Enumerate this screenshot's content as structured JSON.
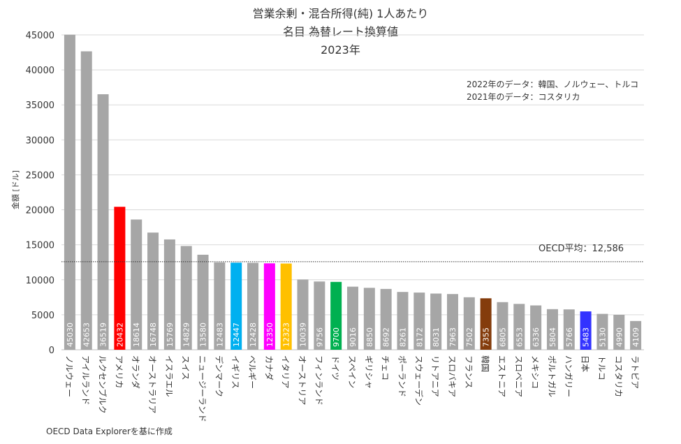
{
  "title_lines": [
    "営業余剰・混合所得(純) 1人あたり",
    "名目 為替レート換算値",
    "2023年"
  ],
  "notes": [
    "2022年のデータ：韓国、ノルウェー、トルコ",
    "2021年のデータ：コスタリカ"
  ],
  "footer": "OECD Data Explorerを基に作成",
  "y_axis_label": "金額 [ドル]",
  "average_label": "OECD平均：12,586",
  "chart_data": {
    "type": "bar",
    "title": "営業余剰・混合所得(純) 1人あたり 名目 為替レート換算値 2023年",
    "ylabel": "金額 [ドル]",
    "ylim": [
      0,
      45000
    ],
    "yticks": [
      0,
      5000,
      10000,
      15000,
      20000,
      25000,
      30000,
      35000,
      40000,
      45000
    ],
    "ytick_labels": [
      "0",
      "5000",
      "10000",
      "15000",
      "20000",
      "25000",
      "30000",
      "35000",
      "40000",
      "45000"
    ],
    "grid": true,
    "average": 12586,
    "categories": [
      "ノルウェー",
      "アイルランド",
      "ルクセンブルク",
      "アメリカ",
      "オランダ",
      "オーストラリア",
      "イスラエル",
      "スイス",
      "ニュージーランド",
      "デンマーク",
      "イギリス",
      "ベルギー",
      "カナダ",
      "イタリア",
      "オーストリア",
      "フィンランド",
      "ドイツ",
      "スペイン",
      "ギリシャ",
      "チェコ",
      "ポーランド",
      "スウェーデン",
      "リトアニア",
      "スロバキア",
      "フランス",
      "韓国",
      "エストニア",
      "スロベニア",
      "メキシコ",
      "ポルトガル",
      "ハンガリー",
      "日本",
      "トルコ",
      "コスタリカ",
      "ラトビア"
    ],
    "values": [
      45030,
      42653,
      36519,
      20432,
      18614,
      16748,
      15769,
      14829,
      13580,
      12483,
      12447,
      12428,
      12350,
      12323,
      10039,
      9756,
      9700,
      9016,
      8850,
      8692,
      8261,
      8172,
      8031,
      7963,
      7502,
      7355,
      6805,
      6553,
      6336,
      5804,
      5766,
      5483,
      5130,
      4990,
      4109
    ],
    "value_labels": [
      "45030",
      "42653",
      "36519",
      "20432",
      "18614",
      "16748",
      "15769",
      "14829",
      "13580",
      "12483",
      "12447",
      "12428",
      "12350",
      "12323",
      "10039",
      "9756",
      "9700",
      "9016",
      "8850",
      "8692",
      "8261",
      "8172",
      "8031",
      "7963",
      "7502",
      "7355",
      "6805",
      "6553",
      "6336",
      "5804",
      "5766",
      "5483",
      "5130",
      "4990",
      "4109"
    ],
    "colors": [
      "#a6a6a6",
      "#a6a6a6",
      "#a6a6a6",
      "#ff0000",
      "#a6a6a6",
      "#a6a6a6",
      "#a6a6a6",
      "#a6a6a6",
      "#a6a6a6",
      "#a6a6a6",
      "#00b0f0",
      "#a6a6a6",
      "#ff00ff",
      "#ffc000",
      "#a6a6a6",
      "#a6a6a6",
      "#00b050",
      "#a6a6a6",
      "#a6a6a6",
      "#a6a6a6",
      "#a6a6a6",
      "#a6a6a6",
      "#a6a6a6",
      "#a6a6a6",
      "#a6a6a6",
      "#843c0c",
      "#a6a6a6",
      "#a6a6a6",
      "#a6a6a6",
      "#a6a6a6",
      "#a6a6a6",
      "#3333ff",
      "#a6a6a6",
      "#a6a6a6",
      "#a6a6a6"
    ]
  }
}
